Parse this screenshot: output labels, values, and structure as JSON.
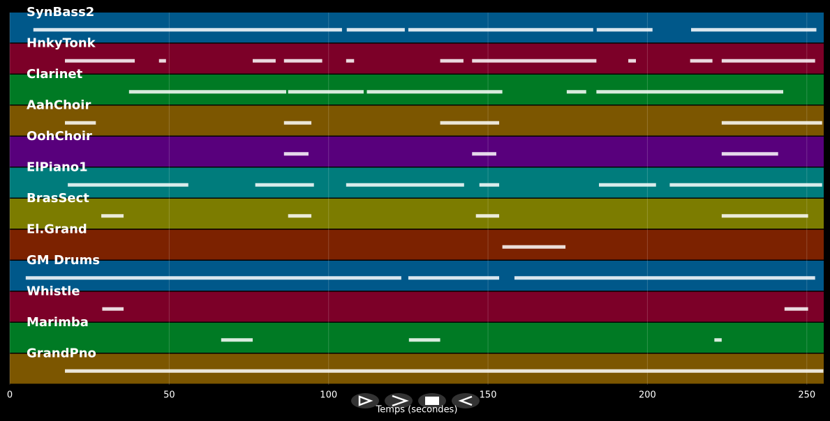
{
  "chart_data": {
    "type": "timeline",
    "xlabel": "Temps (secondes)",
    "xlim": [
      0,
      255.3
    ],
    "xticks": [
      0,
      50,
      100,
      150,
      200,
      250
    ],
    "grid": true,
    "tracks": [
      {
        "name": "SynBass2",
        "color": "#00588a",
        "segments": [
          [
            7.4,
            104.2
          ],
          [
            105.7,
            123.9
          ],
          [
            125,
            183
          ],
          [
            184.1,
            201.6
          ],
          [
            213.7,
            253
          ]
        ]
      },
      {
        "name": "HnkyTonk",
        "color": "#7c0028",
        "segments": [
          [
            17.3,
            39.2
          ],
          [
            46.8,
            49
          ],
          [
            76.2,
            83.4
          ],
          [
            86,
            98
          ],
          [
            105.5,
            108
          ],
          [
            135,
            142.3
          ],
          [
            145,
            184
          ],
          [
            194,
            196.4
          ],
          [
            213.4,
            220.4
          ],
          [
            223.3,
            252.6
          ]
        ]
      },
      {
        "name": "Clarinet",
        "color": "#007a24",
        "segments": [
          [
            37.4,
            86.7
          ],
          [
            87.3,
            111
          ],
          [
            112,
            154.5
          ],
          [
            174.7,
            180.8
          ],
          [
            184,
            242.6
          ]
        ]
      },
      {
        "name": "AahChoir",
        "color": "#7c5600",
        "segments": [
          [
            17.3,
            27
          ],
          [
            86,
            94.6
          ],
          [
            135,
            153.5
          ],
          [
            223.3,
            254.8
          ]
        ]
      },
      {
        "name": "OohChoir",
        "color": "#58007c",
        "segments": [
          [
            86,
            93.7
          ],
          [
            145,
            152.6
          ],
          [
            223.3,
            241
          ]
        ]
      },
      {
        "name": "ElPiano1",
        "color": "#007c7c",
        "segments": [
          [
            18.2,
            56
          ],
          [
            77,
            95.4
          ],
          [
            105.5,
            142.5
          ],
          [
            147.3,
            153.5
          ],
          [
            184.8,
            202.7
          ],
          [
            207,
            254.8
          ]
        ]
      },
      {
        "name": "BrasSect",
        "color": "#7c7c00",
        "segments": [
          [
            28.7,
            35.7
          ],
          [
            87.3,
            94.6
          ],
          [
            146.2,
            153.5
          ],
          [
            223.3,
            250.4
          ]
        ]
      },
      {
        "name": "El.Grand",
        "color": "#7c2200",
        "segments": [
          [
            154.5,
            174.3
          ]
        ]
      },
      {
        "name": "GM Drums",
        "color": "#00588a",
        "segments": [
          [
            5,
            122.8
          ],
          [
            125,
            153.5
          ],
          [
            158.3,
            252.6
          ]
        ]
      },
      {
        "name": "Whistle",
        "color": "#7c0028",
        "segments": [
          [
            29,
            35.7
          ],
          [
            243,
            250.4
          ]
        ]
      },
      {
        "name": "Marimba",
        "color": "#007a24",
        "segments": [
          [
            66.3,
            76.2
          ],
          [
            125.2,
            135
          ],
          [
            221,
            223.3
          ]
        ]
      },
      {
        "name": "GrandPno",
        "color": "#7c5600",
        "segments": [
          [
            17.3,
            255.2
          ]
        ]
      }
    ]
  }
}
